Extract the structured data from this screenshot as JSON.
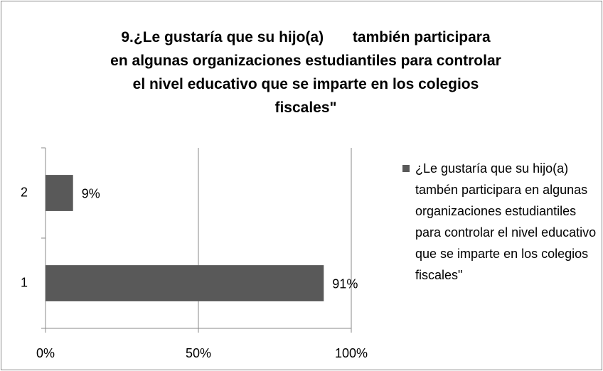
{
  "chart_data": {
    "type": "bar",
    "orientation": "horizontal",
    "title": "9.¿Le gustaría que su hijo(a)       también participara\nen algunas organizaciones estudiantiles para controlar\nel nivel educativo que se imparte en los colegios\nfiscales\"",
    "categories": [
      "1",
      "2"
    ],
    "series": [
      {
        "name": "¿Le gustaría que su hijo(a)      tambén participara en algunas organizaciones estudiantiles para controlar el nivel educativo que se imparte en los colegios fiscales\"",
        "color": "#595959",
        "values": [
          91,
          9
        ],
        "value_labels": [
          "91%",
          "9%"
        ]
      }
    ],
    "xlim": [
      0,
      100
    ],
    "xticks": [
      {
        "value": 0,
        "label": "0%"
      },
      {
        "value": 50,
        "label": "50%"
      },
      {
        "value": 100,
        "label": "100%"
      }
    ],
    "grid": true,
    "legend": "right"
  }
}
